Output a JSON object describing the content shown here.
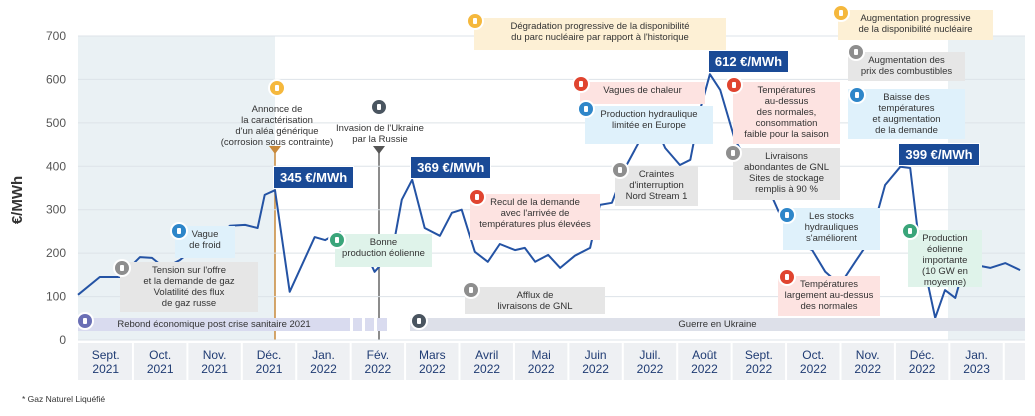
{
  "chart_data": {
    "type": "line",
    "y_label": "€/MWh",
    "footnote": "* Gaz Naturel Liquéfié",
    "color": "#2453a4",
    "grid": true,
    "ylim": [
      0,
      700
    ],
    "yticks": [
      0,
      100,
      200,
      300,
      400,
      500,
      600,
      700
    ],
    "xlim": [
      -0.51,
      16.89
    ],
    "xticks": [
      {
        "value": 0,
        "label": "Sept. 2021"
      },
      {
        "value": 1,
        "label": "Oct. 2021"
      },
      {
        "value": 2,
        "label": "Nov. 2021"
      },
      {
        "value": 3,
        "label": "Déc. 2021"
      },
      {
        "value": 4,
        "label": "Jan. 2022"
      },
      {
        "value": 5,
        "label": "Fév. 2022"
      },
      {
        "value": 6,
        "label": "Mars 2022"
      },
      {
        "value": 7,
        "label": "Avril 2022"
      },
      {
        "value": 8,
        "label": "Mai 2022"
      },
      {
        "value": 9,
        "label": "Juin 2022"
      },
      {
        "value": 10,
        "label": "Juil. 2022"
      },
      {
        "value": 11,
        "label": "Août 2022"
      },
      {
        "value": 12,
        "label": "Sept. 2022"
      },
      {
        "value": 13,
        "label": "Oct. 2022"
      },
      {
        "value": 14,
        "label": "Nov. 2022"
      },
      {
        "value": 15,
        "label": "Déc. 2022"
      },
      {
        "value": 16,
        "label": "Jan. 2023"
      }
    ],
    "x": [
      -0.51,
      -0.11,
      0.26,
      0.63,
      0.85,
      1.08,
      1.36,
      1.64,
      2.0,
      2.28,
      2.56,
      2.79,
      2.92,
      3.11,
      3.38,
      3.84,
      4.03,
      4.3,
      4.49,
      4.71,
      4.94,
      5.13,
      5.31,
      5.44,
      5.63,
      5.86,
      6.14,
      6.36,
      6.54,
      6.78,
      7.02,
      7.24,
      7.52,
      7.7,
      7.89,
      8.13,
      8.35,
      8.62,
      8.9,
      9.08,
      9.3,
      9.54,
      9.82,
      10.09,
      10.28,
      10.55,
      10.74,
      10.92,
      11.1,
      11.29,
      11.56,
      11.75,
      12.02,
      12.21,
      12.39,
      12.57,
      12.76,
      12.98,
      13.22,
      13.49,
      13.77,
      14.04,
      14.32,
      14.6,
      14.78,
      14.96,
      15.11,
      15.24,
      15.42,
      15.61,
      15.79,
      15.97,
      16.25,
      16.53,
      16.8
    ],
    "values": [
      104,
      145,
      145,
      191,
      189,
      166,
      184,
      212,
      230,
      263,
      265,
      258,
      334,
      345,
      111,
      237,
      230,
      249,
      196,
      219,
      157,
      184,
      235,
      323,
      369,
      258,
      240,
      293,
      300,
      203,
      180,
      221,
      207,
      212,
      180,
      196,
      166,
      194,
      212,
      311,
      316,
      396,
      461,
      495,
      442,
      403,
      415,
      530,
      612,
      576,
      461,
      419,
      380,
      339,
      288,
      242,
      219,
      207,
      157,
      127,
      180,
      230,
      357,
      399,
      396,
      207,
      127,
      51,
      115,
      97,
      177,
      173,
      166,
      177,
      161
    ],
    "value_labels": [
      null,
      null,
      null,
      null,
      null,
      null,
      null,
      null,
      null,
      null,
      null,
      null,
      null,
      "345 €/MWh",
      null,
      null,
      null,
      null,
      null,
      null,
      null,
      null,
      null,
      null,
      "369 €/MWh",
      null,
      null,
      null,
      null,
      null,
      null,
      null,
      null,
      null,
      null,
      null,
      null,
      null,
      null,
      null,
      null,
      null,
      null,
      null,
      null,
      null,
      null,
      null,
      "612 €/MWh",
      null,
      null,
      null,
      null,
      null,
      null,
      null,
      null,
      null,
      null,
      null,
      null,
      null,
      null,
      "399 €/MWh",
      null,
      null,
      null,
      null,
      null,
      null,
      null,
      null,
      null,
      null,
      null
    ],
    "annotations": [
      {
        "lines": [
          "Dégradation progressive de la disponibilité",
          "du parc nucléaire par rapport à l'historique"
        ]
      },
      {
        "lines": [
          "Augmentation progressive",
          "de la disponibilité nucléaire"
        ]
      },
      {
        "lines": [
          "Augmentation des",
          "prix des combustibles"
        ]
      },
      {
        "lines": [
          "Baisse des",
          "températures",
          "et augmentation",
          "de la demande"
        ]
      },
      {
        "lines": [
          "Annonce de",
          "la caractérisation",
          "d'un aléa générique",
          "(corrosion sous contrainte)"
        ]
      },
      {
        "lines": [
          "Invasion de l'Ukraine",
          "par la Russie"
        ]
      },
      {
        "lines": [
          "Vague",
          "de froid"
        ]
      },
      {
        "lines": [
          "Tension sur l'offre",
          "et la demande de gaz",
          "Volatilité des flux",
          "de gaz russe"
        ]
      },
      {
        "lines": [
          "Bonne",
          "production éolienne"
        ]
      },
      {
        "lines": [
          "Recul de la demande",
          "avec l'arrivée de",
          "températures plus élevées"
        ]
      },
      {
        "lines": [
          "Afflux de",
          "livraisons de GNL"
        ]
      },
      {
        "lines": [
          "Vagues de chaleur"
        ]
      },
      {
        "lines": [
          "Production hydraulique",
          "limitée en Europe"
        ]
      },
      {
        "lines": [
          "Craintes",
          "d'interruption",
          "Nord Stream 1"
        ]
      },
      {
        "lines": [
          "Températures",
          "au-dessus",
          "des normales,",
          "consommation",
          "faible pour la saison"
        ]
      },
      {
        "lines": [
          "Livraisons",
          "abondantes de GNL",
          "Sites de stockage",
          "remplis à 90 %"
        ]
      },
      {
        "lines": [
          "Les stocks",
          "hydrauliques",
          "s'améliorent"
        ]
      },
      {
        "lines": [
          "Températures",
          "largement au-dessus",
          "des normales"
        ]
      },
      {
        "lines": [
          "Production",
          "éolienne",
          "importante",
          "(10 GW en",
          "moyenne)"
        ]
      }
    ],
    "periods": [
      {
        "label": "Rebond économique post crise sanitaire 2021"
      },
      {
        "label": "Guerre en Ukraine"
      }
    ]
  }
}
